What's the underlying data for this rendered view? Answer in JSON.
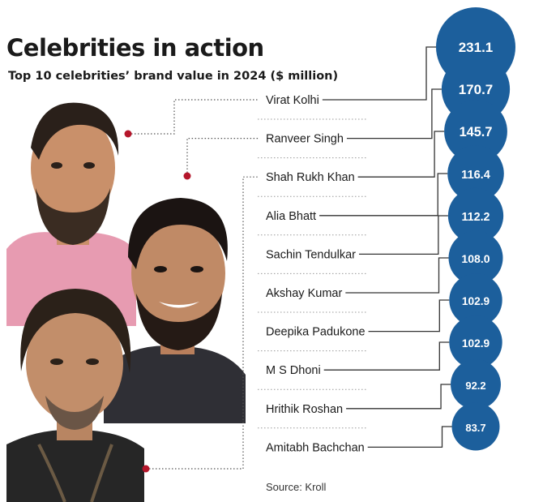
{
  "title": "Celebrities in action",
  "subtitle": "Top 10 celebrities’ brand value in 2024 ($ million)",
  "source": "Source: Kroll",
  "colors": {
    "bubble": "#1c5f9c",
    "bubble_text": "#ffffff",
    "leader": "#333333",
    "marker": "#b5162b"
  },
  "chart_data": {
    "type": "bubble-ranking",
    "categories": [
      "Virat Kolhi",
      "Ranveer Singh",
      "Shah Rukh Khan",
      "Alia Bhatt",
      "Sachin Tendulkar",
      "Akshay Kumar",
      "Deepika Padukone",
      "M S Dhoni",
      "Hrithik Roshan",
      "Amitabh Bachchan"
    ],
    "values": [
      231.1,
      170.7,
      145.7,
      116.4,
      112.2,
      108.0,
      102.9,
      102.9,
      92.2,
      83.7
    ],
    "value_labels": [
      "231.1",
      "170.7",
      "145.7",
      "116.4",
      "112.2",
      "108.0",
      "102.9",
      "102.9",
      "92.2",
      "83.7"
    ],
    "unit": "$ million"
  },
  "photos": [
    "Virat Kolhi",
    "Ranveer Singh",
    "Shah Rukh Khan"
  ]
}
